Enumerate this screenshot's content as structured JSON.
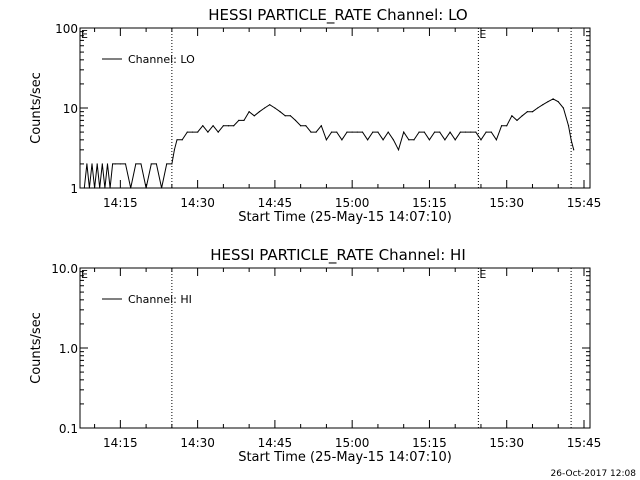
{
  "footer": {
    "timestamp": "26-Oct-2017 12:08"
  },
  "chart_data": [
    {
      "type": "line",
      "title": "HESSI PARTICLE_RATE Channel: LO",
      "xlabel": "Start Time (25-May-15 14:07:10)",
      "ylabel": "Counts/sec",
      "yscale": "log",
      "xlim": [
        "14:07:10",
        "15:46:10"
      ],
      "ylim": [
        1,
        100
      ],
      "x_ticks": [
        "14:15",
        "14:30",
        "14:45",
        "15:00",
        "15:15",
        "15:30",
        "15:45"
      ],
      "y_ticks": [
        "1",
        "10",
        "100"
      ],
      "legend": {
        "position": "top-left",
        "entries": [
          "Channel: LO"
        ]
      },
      "marker_lines": [
        "14:25:00",
        "15:24:30",
        "15:42:30"
      ],
      "marker_labels": [
        {
          "text": "E",
          "at": "14:07:10"
        },
        {
          "text": "E",
          "at": "15:24:30"
        }
      ],
      "series": [
        {
          "name": "Channel: LO",
          "x": [
            "14:08:00",
            "14:08:30",
            "14:09:00",
            "14:09:30",
            "14:10:00",
            "14:10:30",
            "14:11:00",
            "14:11:30",
            "14:12:00",
            "14:12:30",
            "14:13:00",
            "14:13:30",
            "14:14:00",
            "14:15:00",
            "14:16:00",
            "14:17:00",
            "14:18:00",
            "14:19:00",
            "14:20:00",
            "14:21:00",
            "14:22:00",
            "14:23:00",
            "14:24:00",
            "14:25:00",
            "14:25:30",
            "14:26:00",
            "14:27:00",
            "14:28:00",
            "14:29:00",
            "14:30:00",
            "14:31:00",
            "14:32:00",
            "14:33:00",
            "14:34:00",
            "14:35:00",
            "14:36:00",
            "14:37:00",
            "14:38:00",
            "14:39:00",
            "14:40:00",
            "14:41:00",
            "14:42:00",
            "14:43:00",
            "14:44:00",
            "14:45:00",
            "14:46:00",
            "14:47:00",
            "14:48:00",
            "14:49:00",
            "14:50:00",
            "14:51:00",
            "14:52:00",
            "14:53:00",
            "14:54:00",
            "14:55:00",
            "14:56:00",
            "14:57:00",
            "14:58:00",
            "14:59:00",
            "15:00:00",
            "15:01:00",
            "15:02:00",
            "15:03:00",
            "15:04:00",
            "15:05:00",
            "15:06:00",
            "15:07:00",
            "15:08:00",
            "15:09:00",
            "15:10:00",
            "15:11:00",
            "15:12:00",
            "15:13:00",
            "15:14:00",
            "15:15:00",
            "15:16:00",
            "15:17:00",
            "15:18:00",
            "15:19:00",
            "15:20:00",
            "15:21:00",
            "15:22:00",
            "15:23:00",
            "15:24:00",
            "15:25:00",
            "15:26:00",
            "15:27:00",
            "15:28:00",
            "15:29:00",
            "15:30:00",
            "15:31:00",
            "15:32:00",
            "15:33:00",
            "15:34:00",
            "15:35:00",
            "15:36:00",
            "15:37:00",
            "15:38:00",
            "15:39:00",
            "15:40:00",
            "15:41:00",
            "15:42:00",
            "15:42:30",
            "15:43:00"
          ],
          "values": [
            1,
            2,
            1,
            2,
            1,
            2,
            1,
            2,
            1,
            2,
            1,
            2,
            2,
            2,
            2,
            1,
            2,
            2,
            1,
            2,
            2,
            1,
            2,
            2,
            3,
            4,
            4,
            5,
            5,
            5,
            6,
            5,
            6,
            5,
            6,
            6,
            6,
            7,
            7,
            9,
            8,
            9,
            10,
            11,
            10,
            9,
            8,
            8,
            7,
            6,
            6,
            5,
            5,
            6,
            4,
            5,
            5,
            4,
            5,
            5,
            5,
            5,
            4,
            5,
            5,
            4,
            5,
            4,
            3,
            5,
            4,
            4,
            5,
            5,
            4,
            5,
            5,
            4,
            5,
            4,
            5,
            5,
            5,
            5,
            4,
            5,
            5,
            4,
            6,
            6,
            8,
            7,
            8,
            9,
            9,
            10,
            11,
            12,
            13,
            12,
            10,
            6,
            4,
            3
          ]
        }
      ]
    },
    {
      "type": "line",
      "title": "HESSI PARTICLE_RATE Channel: HI",
      "xlabel": "Start Time (25-May-15 14:07:10)",
      "ylabel": "Counts/sec",
      "yscale": "log",
      "xlim": [
        "14:07:10",
        "15:46:10"
      ],
      "ylim": [
        0.1,
        10
      ],
      "x_ticks": [
        "14:15",
        "14:30",
        "14:45",
        "15:00",
        "15:15",
        "15:30",
        "15:45"
      ],
      "y_ticks": [
        "0.1",
        "1.0",
        "10.0"
      ],
      "legend": {
        "position": "top-left",
        "entries": [
          "Channel: HI"
        ]
      },
      "marker_lines": [
        "14:25:00",
        "15:24:30",
        "15:42:30"
      ],
      "marker_labels": [
        {
          "text": "E",
          "at": "14:07:10"
        },
        {
          "text": "E",
          "at": "15:24:30"
        }
      ],
      "series": [
        {
          "name": "Channel: HI",
          "x": [],
          "values": []
        }
      ]
    }
  ]
}
